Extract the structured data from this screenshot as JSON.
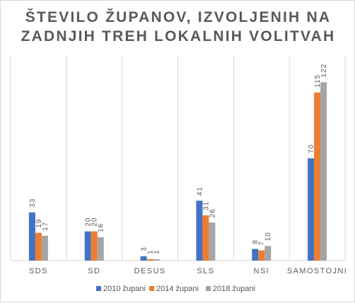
{
  "chart_data": {
    "type": "bar",
    "title_lines": [
      "ŠTEVILO ŽUPANOV, IZVOLJENIH NA",
      "ZADNJIH TREH  LOKALNIH VOLITVAH"
    ],
    "categories": [
      "SDS",
      "SD",
      "DESUS",
      "SLS",
      "NSI",
      "SAMOSTOJNI"
    ],
    "series": [
      {
        "name": "2010 župani",
        "color": "#4472C4",
        "values": [
          33,
          20,
          3,
          41,
          8,
          70
        ]
      },
      {
        "name": "2014 župani",
        "color": "#ED7D31",
        "values": [
          19,
          20,
          1,
          31,
          7,
          115
        ]
      },
      {
        "name": "2018 župani",
        "color": "#A5A5A5",
        "values": [
          17,
          16,
          1,
          26,
          10,
          122
        ]
      }
    ],
    "ylim": [
      0,
      130
    ],
    "grid": "vertical category separators",
    "legend_position": "bottom"
  }
}
